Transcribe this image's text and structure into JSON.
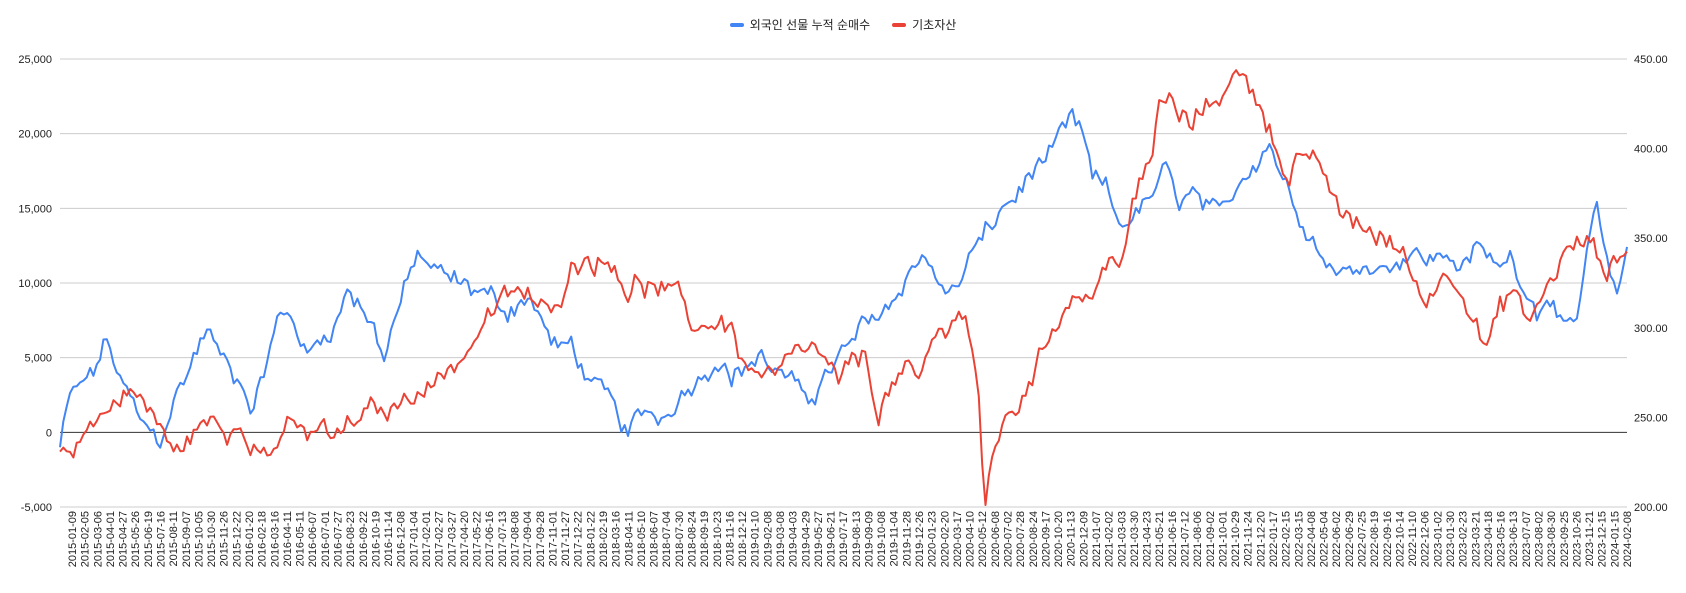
{
  "chart_data": {
    "type": "line",
    "legend_position": "top-center",
    "grid": true,
    "colors": {
      "series1": "#4285F4",
      "series2": "#EA4335",
      "grid": "#cccccc",
      "zero_line": "#333333"
    },
    "series": [
      {
        "name": "외국인 선물 누적 순매수",
        "axis": "left",
        "color": "#4285F4"
      },
      {
        "name": "기초자산",
        "axis": "right",
        "color": "#EA4335"
      }
    ],
    "y_left": {
      "ylim": [
        -5000,
        25000
      ],
      "ticks": [
        -5000,
        0,
        5000,
        10000,
        15000,
        20000,
        25000
      ],
      "tick_labels": [
        "-5,000",
        "0",
        "5,000",
        "10,000",
        "15,000",
        "20,000",
        "25,000"
      ]
    },
    "y_right": {
      "ylim": [
        200,
        450
      ],
      "ticks": [
        200,
        250,
        300,
        350,
        400,
        450
      ],
      "tick_labels": [
        "200.00",
        "250.00",
        "300.00",
        "350.00",
        "400.00",
        "450.00"
      ]
    },
    "x_tick_labels": [
      "2015-01-09",
      "2015-02-05",
      "2015-03-06",
      "2015-04-01",
      "2015-04-27",
      "2015-05-26",
      "2015-06-19",
      "2015-07-16",
      "2015-08-11",
      "2015-09-07",
      "2015-10-05",
      "2015-10-30",
      "2015-11-26",
      "2015-12-22",
      "2016-01-20",
      "2016-02-18",
      "2016-03-16",
      "2016-04-11",
      "2016-05-11",
      "2016-06-07",
      "2016-07-01",
      "2016-07-27",
      "2016-08-23",
      "2016-09-22",
      "2016-10-19",
      "2016-11-14",
      "2016-12-08",
      "2017-01-04",
      "2017-02-01",
      "2017-02-27",
      "2017-03-27",
      "2017-04-20",
      "2017-05-22",
      "2017-06-16",
      "2017-07-13",
      "2017-08-08",
      "2017-09-04",
      "2017-09-28",
      "2017-11-01",
      "2017-11-27",
      "2017-12-22",
      "2018-01-22",
      "2018-02-19",
      "2018-03-16",
      "2018-04-11",
      "2018-05-10",
      "2018-06-07",
      "2018-07-04",
      "2018-07-30",
      "2018-08-24",
      "2018-09-19",
      "2018-10-23",
      "2018-11-16",
      "2018-12-12",
      "2019-01-10",
      "2019-02-08",
      "2019-03-08",
      "2019-04-03",
      "2019-04-29",
      "2019-05-27",
      "2019-06-21",
      "2019-07-17",
      "2019-08-13",
      "2019-09-09",
      "2019-10-08",
      "2019-11-04",
      "2019-11-28",
      "2019-12-26",
      "2020-01-23",
      "2020-02-20",
      "2020-03-17",
      "2020-04-10",
      "2020-05-12",
      "2020-06-08",
      "2020-07-02",
      "2020-07-28",
      "2020-08-24",
      "2020-09-17",
      "2020-10-20",
      "2020-11-13",
      "2020-12-09",
      "2021-01-07",
      "2021-02-02",
      "2021-03-03",
      "2021-03-30",
      "2021-04-23",
      "2021-05-21",
      "2021-06-16",
      "2021-07-12",
      "2021-08-06",
      "2021-09-02",
      "2021-10-01",
      "2021-10-29",
      "2021-11-24",
      "2021-12-20",
      "2022-01-17",
      "2022-02-15",
      "2022-03-15",
      "2022-04-08",
      "2022-05-04",
      "2022-06-02",
      "2022-06-29",
      "2022-07-25",
      "2022-08-19",
      "2022-09-16",
      "2022-10-14",
      "2022-11-10",
      "2022-12-06",
      "2023-01-02",
      "2023-01-30",
      "2023-02-23",
      "2023-03-21",
      "2023-04-18",
      "2023-05-16",
      "2023-06-13",
      "2023-07-07",
      "2023-08-02",
      "2023-08-30",
      "2023-09-25",
      "2023-10-26",
      "2023-11-21",
      "2023-12-15",
      "2024-01-15",
      "2024-02-08"
    ],
    "key_points_series1": [
      [
        0,
        -1000
      ],
      [
        3,
        2500
      ],
      [
        10,
        4000
      ],
      [
        14,
        6200
      ],
      [
        18,
        3500
      ],
      [
        25,
        500
      ],
      [
        30,
        -500
      ],
      [
        34,
        2000
      ],
      [
        40,
        5000
      ],
      [
        44,
        7000
      ],
      [
        47,
        5500
      ],
      [
        52,
        4000
      ],
      [
        55,
        3000
      ],
      [
        58,
        1500
      ],
      [
        62,
        5000
      ],
      [
        66,
        8000
      ],
      [
        70,
        7500
      ],
      [
        74,
        5000
      ],
      [
        78,
        6500
      ],
      [
        82,
        7000
      ],
      [
        86,
        9500
      ],
      [
        90,
        8500
      ],
      [
        94,
        7000
      ],
      [
        97,
        5000
      ],
      [
        100,
        7500
      ],
      [
        104,
        10000
      ],
      [
        107,
        12000
      ],
      [
        111,
        11000
      ],
      [
        115,
        10500
      ],
      [
        120,
        10000
      ],
      [
        125,
        9500
      ],
      [
        130,
        9000
      ],
      [
        134,
        8000
      ],
      [
        138,
        9000
      ],
      [
        142,
        8500
      ],
      [
        146,
        6500
      ],
      [
        150,
        5500
      ],
      [
        153,
        6000
      ],
      [
        157,
        4000
      ],
      [
        160,
        3000
      ],
      [
        164,
        2500
      ],
      [
        167,
        1000
      ],
      [
        170,
        0
      ],
      [
        175,
        1500
      ],
      [
        180,
        1000
      ],
      [
        184,
        2000
      ],
      [
        188,
        3000
      ],
      [
        193,
        4000
      ],
      [
        197,
        5000
      ],
      [
        201,
        3500
      ],
      [
        205,
        4500
      ],
      [
        210,
        5000
      ],
      [
        215,
        4000
      ],
      [
        220,
        3000
      ],
      [
        225,
        2500
      ],
      [
        230,
        4000
      ],
      [
        235,
        5500
      ],
      [
        240,
        7000
      ],
      [
        245,
        8000
      ],
      [
        250,
        9000
      ],
      [
        255,
        11000
      ],
      [
        258,
        12000
      ],
      [
        262,
        10500
      ],
      [
        266,
        9000
      ],
      [
        270,
        10500
      ],
      [
        274,
        12500
      ],
      [
        278,
        13500
      ],
      [
        282,
        15000
      ],
      [
        287,
        16000
      ],
      [
        291,
        17500
      ],
      [
        296,
        18500
      ],
      [
        300,
        20000
      ],
      [
        303,
        21000
      ],
      [
        306,
        20000
      ],
      [
        309,
        17000
      ],
      [
        313,
        16500
      ],
      [
        317,
        14000
      ],
      [
        322,
        14500
      ],
      [
        327,
        16000
      ],
      [
        331,
        17500
      ],
      [
        335,
        15500
      ],
      [
        339,
        16000
      ],
      [
        343,
        15000
      ],
      [
        347,
        14500
      ],
      [
        351,
        16000
      ],
      [
        355,
        17500
      ],
      [
        359,
        18500
      ],
      [
        362,
        19500
      ],
      [
        366,
        17000
      ],
      [
        370,
        15000
      ],
      [
        374,
        13500
      ],
      [
        378,
        11500
      ],
      [
        382,
        11000
      ],
      [
        386,
        10500
      ],
      [
        390,
        11500
      ],
      [
        395,
        11000
      ],
      [
        400,
        11500
      ],
      [
        405,
        12000
      ],
      [
        410,
        11500
      ],
      [
        415,
        12000
      ],
      [
        420,
        11000
      ],
      [
        425,
        12500
      ],
      [
        430,
        11000
      ],
      [
        434,
        12000
      ],
      [
        438,
        10000
      ],
      [
        442,
        8000
      ],
      [
        446,
        9500
      ],
      [
        450,
        6500
      ],
      [
        454,
        7500
      ],
      [
        457,
        12000
      ],
      [
        460,
        15000
      ],
      [
        463,
        11000
      ],
      [
        466,
        9500
      ],
      [
        468,
        11000
      ],
      [
        469,
        12500
      ]
    ],
    "key_points_series2": [
      [
        3,
        230
      ],
      [
        6,
        240
      ],
      [
        12,
        250
      ],
      [
        17,
        260
      ],
      [
        21,
        265
      ],
      [
        25,
        258
      ],
      [
        28,
        250
      ],
      [
        31,
        243
      ],
      [
        34,
        228
      ],
      [
        38,
        238
      ],
      [
        42,
        245
      ],
      [
        46,
        248
      ],
      [
        50,
        240
      ],
      [
        54,
        248
      ],
      [
        58,
        235
      ],
      [
        62,
        228
      ],
      [
        66,
        240
      ],
      [
        70,
        245
      ],
      [
        74,
        240
      ],
      [
        78,
        245
      ],
      [
        82,
        238
      ],
      [
        86,
        245
      ],
      [
        90,
        250
      ],
      [
        94,
        255
      ],
      [
        98,
        253
      ],
      [
        102,
        258
      ],
      [
        106,
        265
      ],
      [
        110,
        268
      ],
      [
        114,
        272
      ],
      [
        118,
        280
      ],
      [
        122,
        287
      ],
      [
        126,
        300
      ],
      [
        130,
        310
      ],
      [
        134,
        318
      ],
      [
        138,
        322
      ],
      [
        142,
        312
      ],
      [
        146,
        310
      ],
      [
        150,
        320
      ],
      [
        154,
        336
      ],
      [
        158,
        340
      ],
      [
        162,
        335
      ],
      [
        166,
        338
      ],
      [
        170,
        318
      ],
      [
        173,
        325
      ],
      [
        177,
        322
      ],
      [
        181,
        320
      ],
      [
        185,
        318
      ],
      [
        189,
        303
      ],
      [
        193,
        300
      ],
      [
        197,
        305
      ],
      [
        201,
        300
      ],
      [
        205,
        278
      ],
      [
        209,
        275
      ],
      [
        213,
        272
      ],
      [
        217,
        280
      ],
      [
        221,
        285
      ],
      [
        225,
        290
      ],
      [
        229,
        280
      ],
      [
        233,
        270
      ],
      [
        237,
        280
      ],
      [
        241,
        285
      ],
      [
        245,
        252
      ],
      [
        249,
        268
      ],
      [
        253,
        275
      ],
      [
        257,
        270
      ],
      [
        261,
        292
      ],
      [
        265,
        300
      ],
      [
        268,
        310
      ],
      [
        271,
        305
      ],
      [
        273,
        290
      ],
      [
        275,
        260
      ],
      [
        276,
        220
      ],
      [
        277,
        200
      ],
      [
        279,
        230
      ],
      [
        282,
        245
      ],
      [
        286,
        255
      ],
      [
        290,
        270
      ],
      [
        294,
        285
      ],
      [
        298,
        305
      ],
      [
        302,
        315
      ],
      [
        306,
        320
      ],
      [
        309,
        318
      ],
      [
        312,
        330
      ],
      [
        315,
        338
      ],
      [
        318,
        340
      ],
      [
        321,
        370
      ],
      [
        324,
        380
      ],
      [
        327,
        398
      ],
      [
        329,
        425
      ],
      [
        332,
        428
      ],
      [
        335,
        418
      ],
      [
        338,
        412
      ],
      [
        341,
        420
      ],
      [
        344,
        425
      ],
      [
        347,
        430
      ],
      [
        350,
        438
      ],
      [
        353,
        440
      ],
      [
        356,
        435
      ],
      [
        359,
        428
      ],
      [
        362,
        410
      ],
      [
        365,
        395
      ],
      [
        368,
        385
      ],
      [
        371,
        398
      ],
      [
        374,
        390
      ],
      [
        377,
        390
      ],
      [
        380,
        380
      ],
      [
        383,
        362
      ],
      [
        386,
        360
      ],
      [
        390,
        358
      ],
      [
        394,
        350
      ],
      [
        398,
        348
      ],
      [
        402,
        340
      ],
      [
        405,
        330
      ],
      [
        408,
        315
      ],
      [
        411,
        320
      ],
      [
        415,
        332
      ],
      [
        419,
        325
      ],
      [
        423,
        305
      ],
      [
        427,
        288
      ],
      [
        431,
        310
      ],
      [
        435,
        322
      ],
      [
        439,
        302
      ],
      [
        443,
        315
      ],
      [
        447,
        330
      ],
      [
        451,
        342
      ],
      [
        455,
        348
      ],
      [
        459,
        345
      ],
      [
        463,
        330
      ],
      [
        467,
        340
      ],
      [
        469,
        347
      ]
    ]
  }
}
